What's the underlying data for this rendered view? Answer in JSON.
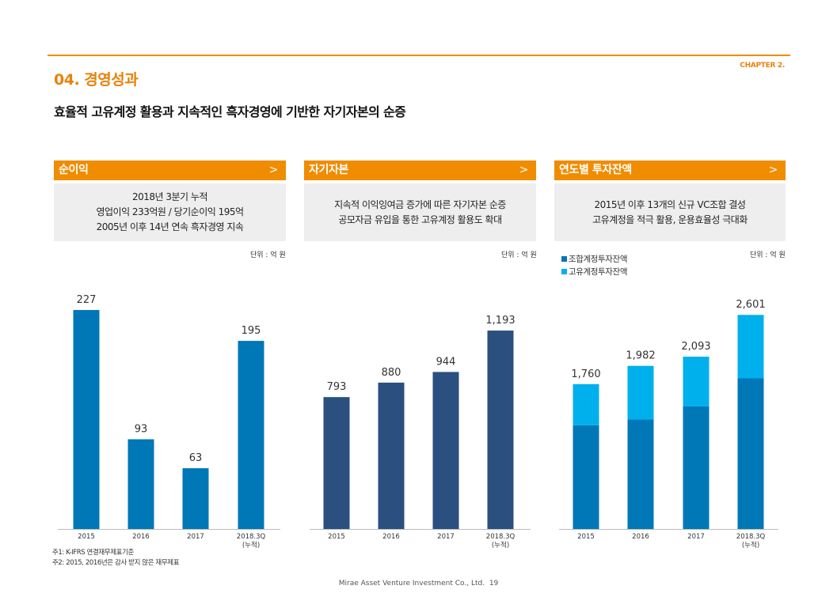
{
  "header": {
    "chapter": "CHAPTER 2.",
    "section_title": "04. 경영성과",
    "subtitle": "효율적 고유계정 활용과 지속적인 흑자경영에 기반한 자기자본의 순증"
  },
  "panels": [
    {
      "title": "순이익",
      "chevron": ">",
      "lines": [
        "2018년 3분기 누적",
        "영업이익 233억원 / 당기순이익 195억",
        "2005년 이후 14년 연속 흑자경영 지속"
      ],
      "unit": "단위 : 억 원"
    },
    {
      "title": "자기자본",
      "chevron": ">",
      "lines": [
        "지속적 이익잉여금 증가에 따른 자기자본 순증",
        "공모자금 유입을 통한 고유계정 활용도 확대"
      ],
      "unit": "단위 : 억 원"
    },
    {
      "title": "연도별 투자잔액",
      "chevron": ">",
      "lines": [
        "2015년 이후 13개의 신규 VC조합 결성",
        "고유계정을 적극 활용, 운용효율성 극대화"
      ],
      "unit": "단위 : 억 원"
    }
  ],
  "colors": {
    "accent": "#f08c00",
    "bar_net_income": "#0077b6",
    "bar_equity": "#2b4f7e",
    "bar_fund": "#0077b6",
    "bar_own": "#00b0ec"
  },
  "chart_data": [
    {
      "type": "bar",
      "categories": [
        "2015",
        "2016",
        "2017",
        "2018.3Q"
      ],
      "category_sub": [
        "",
        "",
        "",
        "(누적)"
      ],
      "values": [
        227,
        93,
        63,
        195
      ],
      "ylim": [
        0,
        250
      ]
    },
    {
      "type": "bar",
      "categories": [
        "2015",
        "2016",
        "2017",
        "2018.3Q"
      ],
      "category_sub": [
        "",
        "",
        "",
        "(누적)"
      ],
      "values": [
        793,
        880,
        944,
        1193
      ],
      "ylim": [
        0,
        1450
      ]
    },
    {
      "type": "bar",
      "stacked": true,
      "categories": [
        "2015",
        "2016",
        "2017",
        "2018.3Q"
      ],
      "category_sub": [
        "",
        "",
        "",
        "(누적)"
      ],
      "series": [
        {
          "name": "조합계정투자잔액",
          "values": [
            1260,
            1330,
            1490,
            1830
          ]
        },
        {
          "name": "고유계정투자잔액",
          "values": [
            500,
            652,
            603,
            771
          ]
        }
      ],
      "totals": [
        1760,
        1982,
        2093,
        2601
      ],
      "legend_position": "top-left",
      "ylim": [
        0,
        2930
      ]
    }
  ],
  "notes": [
    "주1: K-IFRS 연결재무제표기준",
    "주2: 2015, 2016년은 감사 받지 않은 재무제표"
  ],
  "footer": {
    "company": "Mirae Asset Venture Investment Co., Ltd.",
    "page": "19"
  }
}
